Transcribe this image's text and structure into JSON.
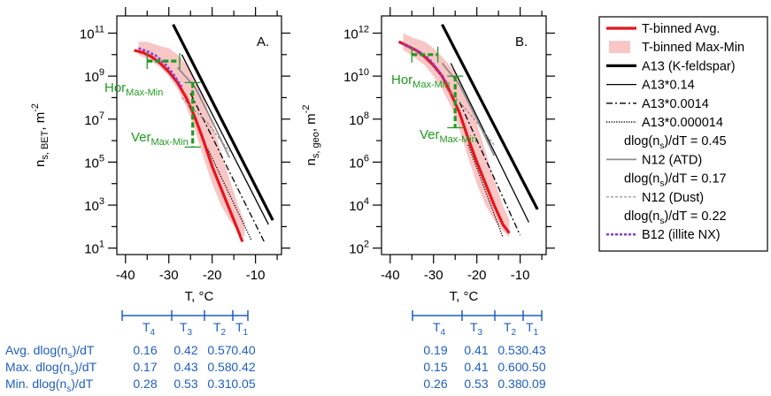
{
  "chart_data": [
    {
      "type": "line",
      "panel_label": "A.",
      "xlabel": "T, °C",
      "ylabel_main": "n",
      "ylabel_sub": "s, BET",
      "ylabel_unit": ", m",
      "ylabel_exp": "-2",
      "xlim": [
        -42,
        -4
      ],
      "ylim_log10": [
        0.7,
        11.8
      ],
      "x_ticks": [
        -40,
        -30,
        -20,
        -10
      ],
      "x_tick_labels": [
        "-40",
        "-30",
        "-20",
        "-10"
      ],
      "y_ticks_log10": [
        1,
        3,
        5,
        7,
        9,
        11
      ],
      "y_tick_labels": [
        {
          "base": "10",
          "exp": "1"
        },
        {
          "base": "10",
          "exp": "3"
        },
        {
          "base": "10",
          "exp": "5"
        },
        {
          "base": "10",
          "exp": "7"
        },
        {
          "base": "10",
          "exp": "9"
        },
        {
          "base": "10",
          "exp": "11"
        }
      ],
      "series": [
        {
          "key": "band",
          "x": [
            -37,
            -35,
            -32,
            -30,
            -28,
            -25,
            -22,
            -20,
            -18,
            -16,
            -14,
            -12.5,
            -12.5,
            -14,
            -16,
            -18,
            -20,
            -22,
            -24,
            -26,
            -28,
            -30,
            -32,
            -34,
            -36,
            -37
          ],
          "y_log10": [
            10.6,
            10.6,
            10.4,
            10.3,
            10.0,
            9.3,
            8.0,
            6.8,
            5.5,
            4.2,
            3.0,
            2.2,
            1.5,
            1.8,
            2.3,
            3.0,
            4.0,
            5.2,
            6.5,
            7.6,
            8.4,
            9.0,
            9.4,
            9.7,
            9.9,
            10.0
          ]
        },
        {
          "key": "avg",
          "x": [
            -38,
            -36,
            -34,
            -32,
            -30,
            -28,
            -26,
            -24,
            -22,
            -20,
            -18,
            -16,
            -14,
            -13
          ],
          "y_log10": [
            10.2,
            10.1,
            9.9,
            9.6,
            9.2,
            8.7,
            8.0,
            7.1,
            6.0,
            4.8,
            3.8,
            2.8,
            1.8,
            1.3
          ]
        },
        {
          "key": "b12",
          "x": [
            -37,
            -35,
            -33,
            -31,
            -29,
            -27
          ],
          "y_log10": [
            10.3,
            10.15,
            9.95,
            9.6,
            9.1,
            8.5
          ]
        },
        {
          "key": "a13",
          "x": [
            -29,
            -6
          ],
          "y_log10": [
            11.4,
            2.3
          ]
        },
        {
          "key": "a13_014",
          "x": [
            -27,
            -7
          ],
          "y_log10": [
            10.0,
            2.1
          ]
        },
        {
          "key": "a13_0014",
          "x": [
            -25,
            -8
          ],
          "y_log10": [
            8.2,
            1.3
          ]
        },
        {
          "key": "a13_000014",
          "x": [
            -21,
            -11
          ],
          "y_log10": [
            5.6,
            1.4
          ]
        },
        {
          "key": "n12_atd",
          "x": [
            -28,
            -24,
            -20,
            -16
          ],
          "y_log10": [
            9.4,
            8.5,
            6.9,
            5.2
          ]
        },
        {
          "key": "n12_dust",
          "x": [
            -27,
            -24,
            -21,
            -18,
            -16
          ],
          "y_log10": [
            8.0,
            7.4,
            6.8,
            6.0,
            5.5
          ]
        },
        {
          "key": "hor",
          "x": [
            -35,
            -27.5
          ],
          "y_log10": [
            9.7,
            9.7
          ]
        },
        {
          "key": "ver",
          "x": [
            -24.5,
            -24.5
          ],
          "y_log10": [
            8.7,
            5.7
          ]
        }
      ],
      "annotations": [
        {
          "key": "hor",
          "main": "Hor",
          "sub": "Max-Min"
        },
        {
          "key": "ver",
          "main": "Ver",
          "sub": "Max-Min"
        }
      ],
      "table": {
        "bin_labels": [
          "T",
          "T",
          "T",
          "T"
        ],
        "bin_subs": [
          "4",
          "3",
          "2",
          "1"
        ],
        "row_labels": [
          {
            "pre": "Avg.  dlog(n",
            "sub": "s",
            "post": ")/dT"
          },
          {
            "pre": "Max.  dlog(n",
            "sub": "s",
            "post": ")/dT"
          },
          {
            "pre": "Min.  dlog(n",
            "sub": "s",
            "post": ")/dT"
          }
        ],
        "rows": [
          [
            "0.16",
            "0.42",
            "0.57",
            "0.40"
          ],
          [
            "0.17",
            "0.43",
            "0.58",
            "0.42"
          ],
          [
            "0.28",
            "0.53",
            "0.31",
            "0.05"
          ]
        ]
      }
    },
    {
      "type": "line",
      "panel_label": "B.",
      "xlabel": "T, °C",
      "ylabel_main": "n",
      "ylabel_sub": "s, geo",
      "ylabel_unit": ", m",
      "ylabel_exp": "-2",
      "xlim": [
        -42,
        -4
      ],
      "ylim_log10": [
        1.7,
        12.8
      ],
      "x_ticks": [
        -40,
        -30,
        -20,
        -10
      ],
      "x_tick_labels": [
        "-40",
        "-30",
        "-20",
        "-10"
      ],
      "y_ticks_log10": [
        2,
        4,
        6,
        8,
        10,
        12
      ],
      "y_tick_labels": [
        {
          "base": "10",
          "exp": "2"
        },
        {
          "base": "10",
          "exp": "4"
        },
        {
          "base": "10",
          "exp": "6"
        },
        {
          "base": "10",
          "exp": "8"
        },
        {
          "base": "10",
          "exp": "10"
        },
        {
          "base": "10",
          "exp": "12"
        }
      ],
      "series": [
        {
          "key": "band",
          "x": [
            -37,
            -35,
            -32,
            -30,
            -28,
            -25,
            -22,
            -20,
            -18,
            -16,
            -14,
            -12.5,
            -12.5,
            -14,
            -16,
            -18,
            -20,
            -22,
            -24,
            -26,
            -28,
            -30,
            -32,
            -34,
            -36,
            -37
          ],
          "y_log10": [
            12.0,
            11.8,
            11.6,
            11.3,
            10.9,
            10.2,
            9.0,
            7.8,
            6.5,
            5.2,
            4.0,
            3.3,
            2.5,
            2.8,
            3.3,
            4.0,
            5.0,
            6.2,
            7.5,
            8.6,
            9.4,
            10.0,
            10.5,
            10.8,
            11.1,
            11.2
          ]
        },
        {
          "key": "avg",
          "x": [
            -38,
            -36,
            -34,
            -32,
            -30,
            -28,
            -26,
            -24,
            -22,
            -20,
            -18,
            -16,
            -14,
            -12.5
          ],
          "y_log10": [
            11.6,
            11.4,
            11.2,
            10.9,
            10.5,
            10.0,
            9.2,
            8.3,
            7.1,
            6.0,
            5.0,
            4.0,
            3.1,
            2.7
          ]
        },
        {
          "key": "b12",
          "x": [
            -37,
            -35,
            -33,
            -31,
            -29,
            -27
          ],
          "y_log10": [
            11.5,
            11.3,
            11.1,
            10.8,
            10.3,
            9.7
          ]
        },
        {
          "key": "a13",
          "x": [
            -28,
            -6
          ],
          "y_log10": [
            12.4,
            3.8
          ]
        },
        {
          "key": "a13_014",
          "x": [
            -26,
            -8
          ],
          "y_log10": [
            10.6,
            3.2
          ]
        },
        {
          "key": "a13_0014",
          "x": [
            -24,
            -10
          ],
          "y_log10": [
            8.8,
            2.6
          ]
        },
        {
          "key": "a13_000014",
          "x": [
            -22,
            -14
          ],
          "y_log10": [
            6.8,
            2.5
          ]
        },
        {
          "key": "n12_atd",
          "x": [
            -28,
            -24,
            -20,
            -16
          ],
          "y_log10": [
            10.6,
            9.6,
            8.0,
            6.3
          ]
        },
        {
          "key": "n12_dust",
          "x": [
            -27,
            -24,
            -21,
            -18,
            -16
          ],
          "y_log10": [
            9.4,
            8.8,
            8.1,
            7.3,
            6.8
          ]
        },
        {
          "key": "hor",
          "x": [
            -35,
            -29
          ],
          "y_log10": [
            11.0,
            11.0
          ]
        },
        {
          "key": "ver",
          "x": [
            -25,
            -25
          ],
          "y_log10": [
            10.0,
            7.6
          ]
        }
      ],
      "annotations": [
        {
          "key": "hor",
          "main": "Hor",
          "sub": "Max-Min"
        },
        {
          "key": "ver",
          "main": "Ver",
          "sub": "Max-Min"
        }
      ],
      "table": {
        "bin_labels": [
          "T",
          "T",
          "T",
          "T"
        ],
        "bin_subs": [
          "4",
          "3",
          "2",
          "1"
        ],
        "row_labels": [],
        "rows": [
          [
            "0.19",
            "0.41",
            "0.53",
            "0.43"
          ],
          [
            "0.15",
            "0.41",
            "0.60",
            "0.50"
          ],
          [
            "0.26",
            "0.53",
            "0.38",
            "0.09"
          ]
        ]
      }
    }
  ],
  "legend": [
    {
      "key": "avg",
      "label": "T-binned Avg."
    },
    {
      "key": "band",
      "label": "T-binned Max-Min"
    },
    {
      "key": "a13",
      "label": "A13 (K-feldspar)"
    },
    {
      "key": "a13_014",
      "label": "A13*0.14"
    },
    {
      "key": "a13_0014",
      "label": "A13*0.0014"
    },
    {
      "key": "a13_000014",
      "label": "A13*0.000014"
    },
    {
      "key": "note",
      "pre": "dlog(n",
      "sub": "s",
      "post": ")/dT = 0.45"
    },
    {
      "key": "n12_atd",
      "label": "N12 (ATD)"
    },
    {
      "key": "note",
      "pre": "dlog(n",
      "sub": "s",
      "post": ")/dT = 0.17"
    },
    {
      "key": "n12_dust",
      "label": "N12 (Dust)"
    },
    {
      "key": "note",
      "pre": "dlog(n",
      "sub": "s",
      "post": ")/dT = 0.22"
    },
    {
      "key": "b12",
      "label": "B12 (illite NX)"
    }
  ],
  "colors": {
    "avg": "#e8141c",
    "band": "#f9c6c6",
    "black": "#000000",
    "grey": "#8c8c8c",
    "b12": "#8a3fd1",
    "green": "#1f9a1f",
    "blue": "#1f5fbf"
  }
}
